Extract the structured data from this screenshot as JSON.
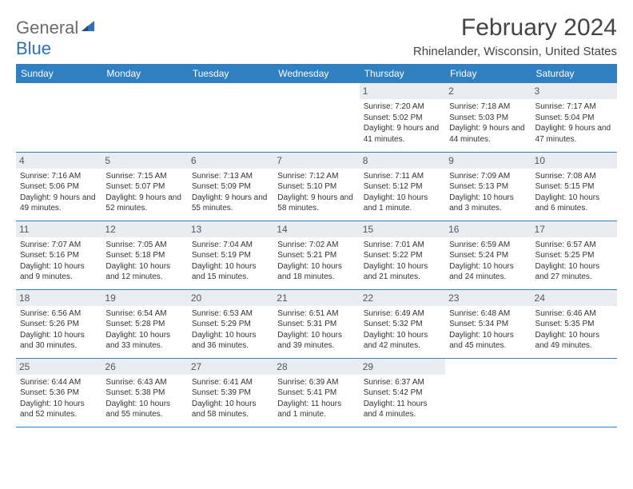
{
  "logo": {
    "text1": "General",
    "text2": "Blue"
  },
  "title": "February 2024",
  "location": "Rhinelander, Wisconsin, United States",
  "colors": {
    "header_bg": "#2f7fc1",
    "header_text": "#ffffff",
    "daynum_bg": "#e9edf1",
    "border": "#2f7fc1",
    "logo_gray": "#6b6b6b",
    "logo_blue": "#2f71b8"
  },
  "weekdays": [
    "Sunday",
    "Monday",
    "Tuesday",
    "Wednesday",
    "Thursday",
    "Friday",
    "Saturday"
  ],
  "first_weekday_index": 4,
  "days": [
    {
      "n": 1,
      "sunrise": "7:20 AM",
      "sunset": "5:02 PM",
      "daylight": "9 hours and 41 minutes."
    },
    {
      "n": 2,
      "sunrise": "7:18 AM",
      "sunset": "5:03 PM",
      "daylight": "9 hours and 44 minutes."
    },
    {
      "n": 3,
      "sunrise": "7:17 AM",
      "sunset": "5:04 PM",
      "daylight": "9 hours and 47 minutes."
    },
    {
      "n": 4,
      "sunrise": "7:16 AM",
      "sunset": "5:06 PM",
      "daylight": "9 hours and 49 minutes."
    },
    {
      "n": 5,
      "sunrise": "7:15 AM",
      "sunset": "5:07 PM",
      "daylight": "9 hours and 52 minutes."
    },
    {
      "n": 6,
      "sunrise": "7:13 AM",
      "sunset": "5:09 PM",
      "daylight": "9 hours and 55 minutes."
    },
    {
      "n": 7,
      "sunrise": "7:12 AM",
      "sunset": "5:10 PM",
      "daylight": "9 hours and 58 minutes."
    },
    {
      "n": 8,
      "sunrise": "7:11 AM",
      "sunset": "5:12 PM",
      "daylight": "10 hours and 1 minute."
    },
    {
      "n": 9,
      "sunrise": "7:09 AM",
      "sunset": "5:13 PM",
      "daylight": "10 hours and 3 minutes."
    },
    {
      "n": 10,
      "sunrise": "7:08 AM",
      "sunset": "5:15 PM",
      "daylight": "10 hours and 6 minutes."
    },
    {
      "n": 11,
      "sunrise": "7:07 AM",
      "sunset": "5:16 PM",
      "daylight": "10 hours and 9 minutes."
    },
    {
      "n": 12,
      "sunrise": "7:05 AM",
      "sunset": "5:18 PM",
      "daylight": "10 hours and 12 minutes."
    },
    {
      "n": 13,
      "sunrise": "7:04 AM",
      "sunset": "5:19 PM",
      "daylight": "10 hours and 15 minutes."
    },
    {
      "n": 14,
      "sunrise": "7:02 AM",
      "sunset": "5:21 PM",
      "daylight": "10 hours and 18 minutes."
    },
    {
      "n": 15,
      "sunrise": "7:01 AM",
      "sunset": "5:22 PM",
      "daylight": "10 hours and 21 minutes."
    },
    {
      "n": 16,
      "sunrise": "6:59 AM",
      "sunset": "5:24 PM",
      "daylight": "10 hours and 24 minutes."
    },
    {
      "n": 17,
      "sunrise": "6:57 AM",
      "sunset": "5:25 PM",
      "daylight": "10 hours and 27 minutes."
    },
    {
      "n": 18,
      "sunrise": "6:56 AM",
      "sunset": "5:26 PM",
      "daylight": "10 hours and 30 minutes."
    },
    {
      "n": 19,
      "sunrise": "6:54 AM",
      "sunset": "5:28 PM",
      "daylight": "10 hours and 33 minutes."
    },
    {
      "n": 20,
      "sunrise": "6:53 AM",
      "sunset": "5:29 PM",
      "daylight": "10 hours and 36 minutes."
    },
    {
      "n": 21,
      "sunrise": "6:51 AM",
      "sunset": "5:31 PM",
      "daylight": "10 hours and 39 minutes."
    },
    {
      "n": 22,
      "sunrise": "6:49 AM",
      "sunset": "5:32 PM",
      "daylight": "10 hours and 42 minutes."
    },
    {
      "n": 23,
      "sunrise": "6:48 AM",
      "sunset": "5:34 PM",
      "daylight": "10 hours and 45 minutes."
    },
    {
      "n": 24,
      "sunrise": "6:46 AM",
      "sunset": "5:35 PM",
      "daylight": "10 hours and 49 minutes."
    },
    {
      "n": 25,
      "sunrise": "6:44 AM",
      "sunset": "5:36 PM",
      "daylight": "10 hours and 52 minutes."
    },
    {
      "n": 26,
      "sunrise": "6:43 AM",
      "sunset": "5:38 PM",
      "daylight": "10 hours and 55 minutes."
    },
    {
      "n": 27,
      "sunrise": "6:41 AM",
      "sunset": "5:39 PM",
      "daylight": "10 hours and 58 minutes."
    },
    {
      "n": 28,
      "sunrise": "6:39 AM",
      "sunset": "5:41 PM",
      "daylight": "11 hours and 1 minute."
    },
    {
      "n": 29,
      "sunrise": "6:37 AM",
      "sunset": "5:42 PM",
      "daylight": "11 hours and 4 minutes."
    }
  ],
  "labels": {
    "sunrise": "Sunrise:",
    "sunset": "Sunset:",
    "daylight": "Daylight:"
  }
}
